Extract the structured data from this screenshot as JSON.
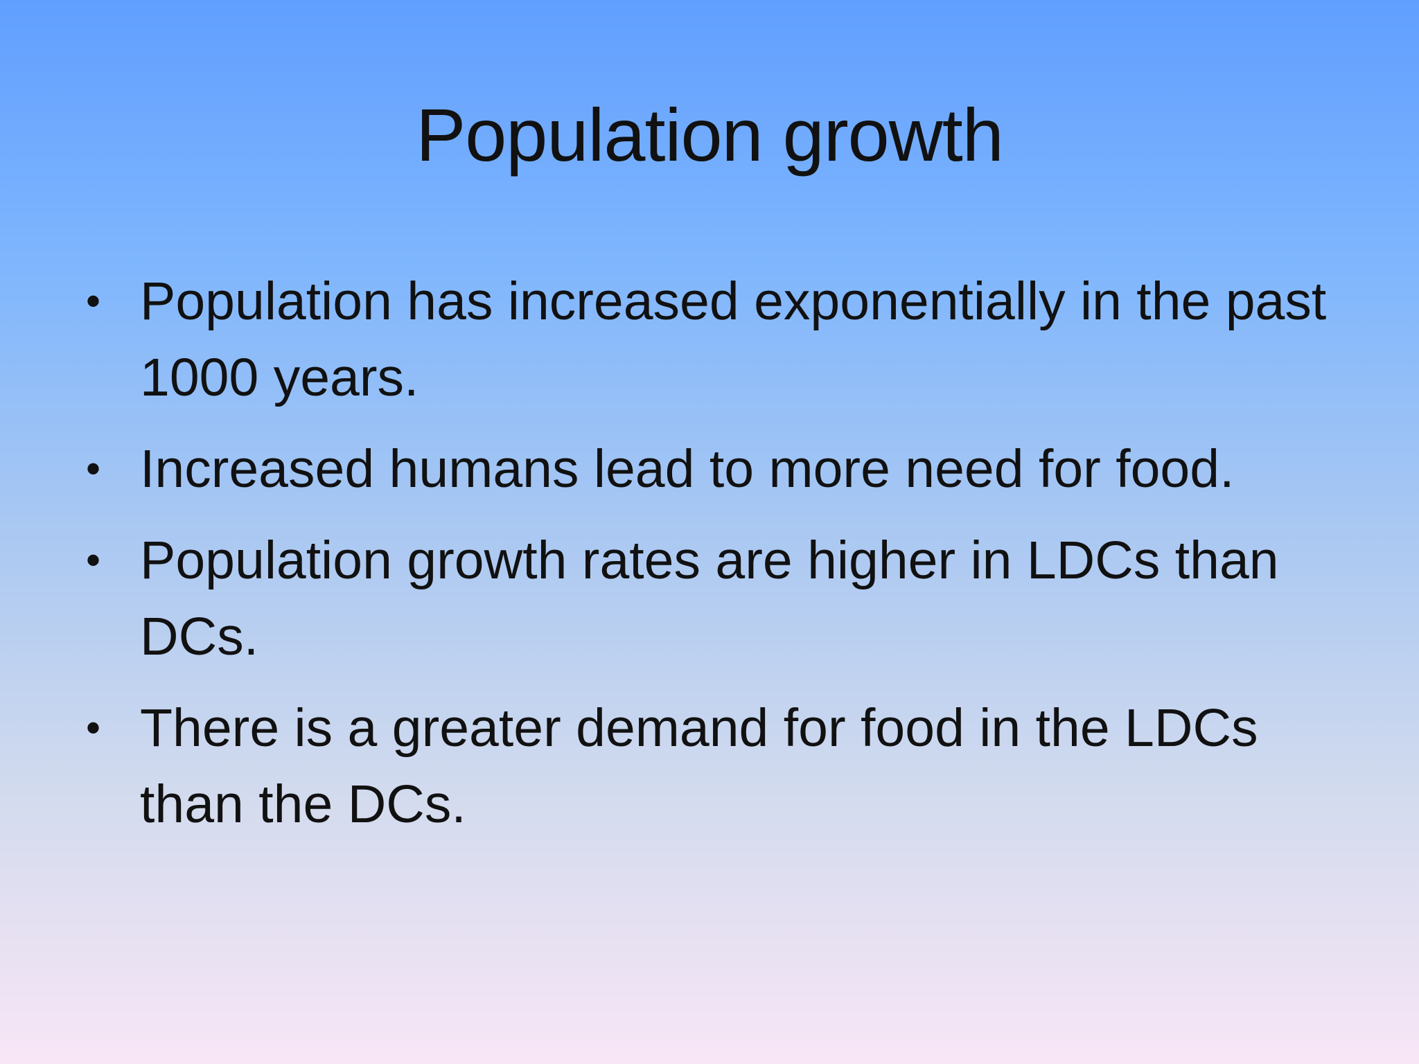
{
  "slide": {
    "title": "Population growth",
    "bullet_glyph": "•",
    "bullets": [
      "Population has increased exponentially in the past 1000 years.",
      "Increased humans lead to more need for food.",
      "Population growth rates are higher in LDCs than DCs.",
      "There is a greater demand for food in the LDCs than the DCs."
    ]
  },
  "colors": {
    "background_top": "#619fff",
    "background_bottom": "#f8e6f6",
    "text": "#111111"
  }
}
